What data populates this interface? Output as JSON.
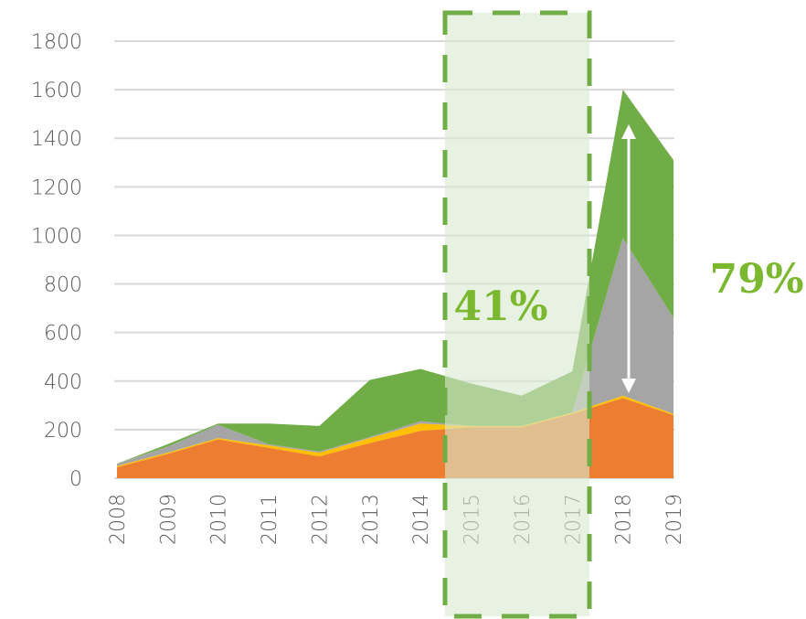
{
  "chart_data": {
    "type": "stacked_area",
    "categories": [
      "2008",
      "2009",
      "2010",
      "2011",
      "2012",
      "2013",
      "2014",
      "2015",
      "2016",
      "2017",
      "2018",
      "2019"
    ],
    "series": [
      {
        "color": "#ed7d31",
        "values": [
          45,
          100,
          160,
          125,
          90,
          145,
          195,
          210,
          210,
          265,
          330,
          260
        ]
      },
      {
        "color": "#ffc000",
        "values": [
          5,
          5,
          5,
          10,
          15,
          20,
          30,
          5,
          5,
          5,
          10,
          5
        ]
      },
      {
        "color": "#a5a5a5",
        "values": [
          10,
          25,
          55,
          5,
          5,
          5,
          10,
          0,
          0,
          0,
          650,
          395
        ]
      },
      {
        "color": "#70ad47",
        "values": [
          0,
          10,
          5,
          85,
          105,
          235,
          215,
          175,
          125,
          170,
          610,
          650
        ]
      }
    ],
    "ylim": [
      0,
      1800
    ],
    "yticks": [
      0,
      200,
      400,
      600,
      800,
      1000,
      1200,
      1400,
      1600,
      1800
    ],
    "grid": true,
    "annotations": [
      "41%",
      "79%"
    ]
  }
}
